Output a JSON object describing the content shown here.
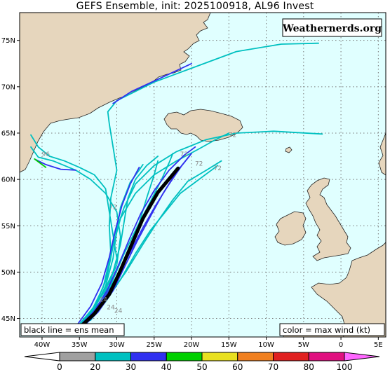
{
  "title": "GEFS Ensemble, init: 2025100918, AL96 Invest",
  "brand": "Weathernerds.org",
  "legend_left": "black line = ens mean",
  "legend_right": "color = max wind (kt)",
  "lat_labels": [
    "75N",
    "70N",
    "65N",
    "60N",
    "55N",
    "50N",
    "45N"
  ],
  "lon_labels": [
    "40W",
    "35W",
    "30W",
    "25W",
    "20W",
    "15W",
    "10W",
    "5W",
    "0",
    "5E"
  ],
  "colorbar": {
    "labels": [
      "0",
      "20",
      "30",
      "40",
      "50",
      "60",
      "70",
      "80",
      "100"
    ],
    "colors": [
      "#a0a0a0",
      "#00c0c0",
      "#3030f0",
      "#00d000",
      "#e8e020",
      "#f08020",
      "#e02020",
      "#e01080"
    ],
    "under_color": "#ffffff",
    "over_color": "#ff66ff"
  },
  "colors": {
    "ocean": "#e0ffff",
    "land": "#e6d6bd",
    "ts": "#00c0c0",
    "td": "#3030f0",
    "green": "#00d000"
  },
  "map_extent": {
    "lon_min": -43,
    "lon_max": 6,
    "lat_min": 43,
    "lat_max": 78
  },
  "hour_labels": [
    {
      "text": "72",
      "lon": -30.5,
      "lat": 56.8
    },
    {
      "text": "72",
      "lon": -21.0,
      "lat": 62.5
    },
    {
      "text": "72",
      "lon": -19.0,
      "lat": 61.5
    },
    {
      "text": "72",
      "lon": -16.5,
      "lat": 61.0
    },
    {
      "text": "72",
      "lon": -14.5,
      "lat": 64.6
    },
    {
      "text": "96",
      "lon": -39.5,
      "lat": 62.5
    },
    {
      "text": "24",
      "lon": -31.8,
      "lat": 46.8
    },
    {
      "text": "24",
      "lon": -30.8,
      "lat": 46.0
    },
    {
      "text": "24",
      "lon": -29.8,
      "lat": 45.6
    }
  ],
  "ensemble_mean": [
    [
      -35,
      44
    ],
    [
      -33,
      45.5
    ],
    [
      -31,
      47.6
    ],
    [
      -29.5,
      50.2
    ],
    [
      -28,
      53
    ],
    [
      -26.5,
      55.8
    ],
    [
      -24.5,
      58.6
    ],
    [
      -21.8,
      61.2
    ]
  ],
  "members": [
    {
      "color": "ts",
      "points": [
        [
          -35.5,
          44
        ],
        [
          -33.5,
          45.5
        ],
        [
          -32,
          47.5
        ],
        [
          -30.5,
          50
        ],
        [
          -29.5,
          53
        ],
        [
          -29,
          55.5
        ],
        [
          -28.5,
          58
        ],
        [
          -27.5,
          60
        ],
        [
          -26,
          61.5
        ],
        [
          -24.5,
          62.5
        ]
      ]
    },
    {
      "color": "ts",
      "points": [
        [
          -34.5,
          44
        ],
        [
          -32.5,
          46
        ],
        [
          -31,
          48.5
        ],
        [
          -30,
          51.5
        ],
        [
          -30.5,
          54
        ],
        [
          -31,
          56.5
        ],
        [
          -31.5,
          59
        ],
        [
          -33,
          60.5
        ],
        [
          -35,
          61.3
        ],
        [
          -37,
          62
        ],
        [
          -39,
          62.5
        ],
        [
          -40.5,
          63.5
        ],
        [
          -41.5,
          64.8
        ]
      ]
    },
    {
      "color": "ts",
      "points": [
        [
          -35,
          44.3
        ],
        [
          -33,
          46.2
        ],
        [
          -31.5,
          49
        ],
        [
          -30.8,
          52
        ],
        [
          -31,
          55
        ],
        [
          -30.8,
          58
        ],
        [
          -30,
          61
        ],
        [
          -30.5,
          63.5
        ],
        [
          -31,
          66
        ],
        [
          -31.2,
          67.3
        ],
        [
          -30,
          68.5
        ],
        [
          -25,
          70.5
        ],
        [
          -20,
          72
        ],
        [
          -14,
          73.8
        ],
        [
          -8,
          74.6
        ],
        [
          -3,
          74.7
        ]
      ]
    },
    {
      "color": "ts",
      "points": [
        [
          -35.5,
          43.9
        ],
        [
          -33.5,
          45.8
        ],
        [
          -31.5,
          48
        ],
        [
          -30,
          50.8
        ],
        [
          -29.5,
          53.8
        ],
        [
          -30,
          56.5
        ],
        [
          -31.5,
          58.5
        ],
        [
          -33.5,
          60
        ],
        [
          -35.5,
          61
        ],
        [
          -38.5,
          62
        ],
        [
          -40.5,
          62.4
        ],
        [
          -41.5,
          63.5
        ]
      ]
    },
    {
      "color": "ts",
      "points": [
        [
          -34,
          44.5
        ],
        [
          -31.5,
          46.8
        ],
        [
          -29.5,
          49.2
        ],
        [
          -27.5,
          52
        ],
        [
          -25.5,
          54.5
        ],
        [
          -23.5,
          56.5
        ],
        [
          -21.5,
          58.5
        ],
        [
          -19,
          60
        ],
        [
          -16.5,
          61.5
        ]
      ]
    },
    {
      "color": "ts",
      "points": [
        [
          -33.5,
          44.8
        ],
        [
          -31,
          47.5
        ],
        [
          -28.8,
          50
        ],
        [
          -26.5,
          53
        ],
        [
          -24.5,
          55.5
        ],
        [
          -22.5,
          57.8
        ],
        [
          -20.5,
          59.8
        ],
        [
          -18,
          61
        ],
        [
          -16,
          62
        ]
      ]
    },
    {
      "color": "ts",
      "points": [
        [
          -34.8,
          44.1
        ],
        [
          -32.8,
          46.5
        ],
        [
          -31.3,
          49.5
        ],
        [
          -30.5,
          52.8
        ],
        [
          -29.5,
          55.8
        ],
        [
          -27.5,
          58.5
        ],
        [
          -25,
          60.5
        ],
        [
          -22,
          62
        ],
        [
          -19,
          63.3
        ],
        [
          -17,
          64.2
        ],
        [
          -15,
          65
        ]
      ]
    },
    {
      "color": "ts",
      "points": [
        [
          -35.3,
          44.1
        ],
        [
          -33.2,
          46.1
        ],
        [
          -31.8,
          48.4
        ],
        [
          -31,
          51.2
        ],
        [
          -30.3,
          54
        ],
        [
          -29,
          57
        ],
        [
          -27.5,
          59.5
        ],
        [
          -25,
          61.5
        ],
        [
          -22,
          63
        ],
        [
          -18,
          64.3
        ],
        [
          -14,
          65
        ],
        [
          -9,
          65.2
        ],
        [
          -2.5,
          64.9
        ]
      ]
    },
    {
      "color": "ts",
      "points": [
        [
          -34.2,
          44.6
        ],
        [
          -32,
          47
        ],
        [
          -30,
          49.5
        ],
        [
          -28.2,
          52.5
        ],
        [
          -27,
          55.3
        ],
        [
          -26,
          58
        ],
        [
          -25,
          60.5
        ],
        [
          -24.5,
          62
        ]
      ]
    },
    {
      "color": "ts",
      "points": [
        [
          -35,
          44.2
        ],
        [
          -33,
          46
        ],
        [
          -31.5,
          48.5
        ],
        [
          -30.5,
          51.5
        ],
        [
          -30,
          54.5
        ],
        [
          -29.5,
          57
        ],
        [
          -28.2,
          59.7
        ],
        [
          -27,
          61
        ],
        [
          -26.5,
          61.6
        ]
      ]
    },
    {
      "color": "ts",
      "points": [
        [
          -34.6,
          44.4
        ],
        [
          -32.4,
          46.6
        ],
        [
          -30.6,
          49
        ],
        [
          -29,
          52
        ],
        [
          -27.2,
          55
        ],
        [
          -25.5,
          57.6
        ],
        [
          -24,
          60
        ],
        [
          -23,
          61.8
        ],
        [
          -22.5,
          62.8
        ]
      ]
    },
    {
      "color": "td",
      "points": [
        [
          -35.2,
          44
        ],
        [
          -33,
          45.8
        ],
        [
          -31.3,
          48
        ],
        [
          -29.8,
          50.7
        ],
        [
          -28.3,
          53.6
        ],
        [
          -26.8,
          56.3
        ],
        [
          -25,
          58.8
        ],
        [
          -23,
          61
        ],
        [
          -21,
          62.6
        ],
        [
          -19.5,
          63.5
        ]
      ]
    },
    {
      "color": "td",
      "points": [
        [
          -34.8,
          43.9
        ],
        [
          -32.5,
          45.7
        ],
        [
          -30.5,
          48
        ],
        [
          -29,
          50.5
        ],
        [
          -27.3,
          53.3
        ],
        [
          -25.5,
          56
        ],
        [
          -23.8,
          58.5
        ],
        [
          -22,
          60.8
        ],
        [
          -20.2,
          62.6
        ]
      ]
    },
    {
      "color": "td",
      "points": [
        [
          -35.4,
          44.2
        ],
        [
          -33.5,
          46.3
        ],
        [
          -32,
          48.8
        ],
        [
          -31,
          51.6
        ],
        [
          -30.2,
          54.5
        ],
        [
          -29.3,
          57.2
        ],
        [
          -28.2,
          59.5
        ],
        [
          -27,
          61.3
        ]
      ]
    },
    {
      "color": "td",
      "points": [
        [
          -34.4,
          44.5
        ],
        [
          -32,
          46.8
        ],
        [
          -30,
          49.3
        ],
        [
          -28.3,
          52
        ],
        [
          -26.5,
          54.8
        ],
        [
          -24.8,
          57.2
        ],
        [
          -23,
          59.5
        ],
        [
          -21.3,
          61.5
        ],
        [
          -20,
          62.8
        ]
      ]
    },
    {
      "color": "td",
      "points": [
        [
          -41,
          62.2
        ],
        [
          -39.5,
          61.6
        ],
        [
          -37.5,
          61.1
        ],
        [
          -35.5,
          61
        ]
      ]
    },
    {
      "color": "td",
      "points": [
        [
          -30.5,
          68.2
        ],
        [
          -28,
          69.5
        ],
        [
          -24.5,
          70.8
        ],
        [
          -20,
          72.5
        ]
      ]
    },
    {
      "color": "green",
      "points": [
        [
          -41,
          62.2
        ],
        [
          -39.5,
          61.3
        ]
      ]
    }
  ]
}
